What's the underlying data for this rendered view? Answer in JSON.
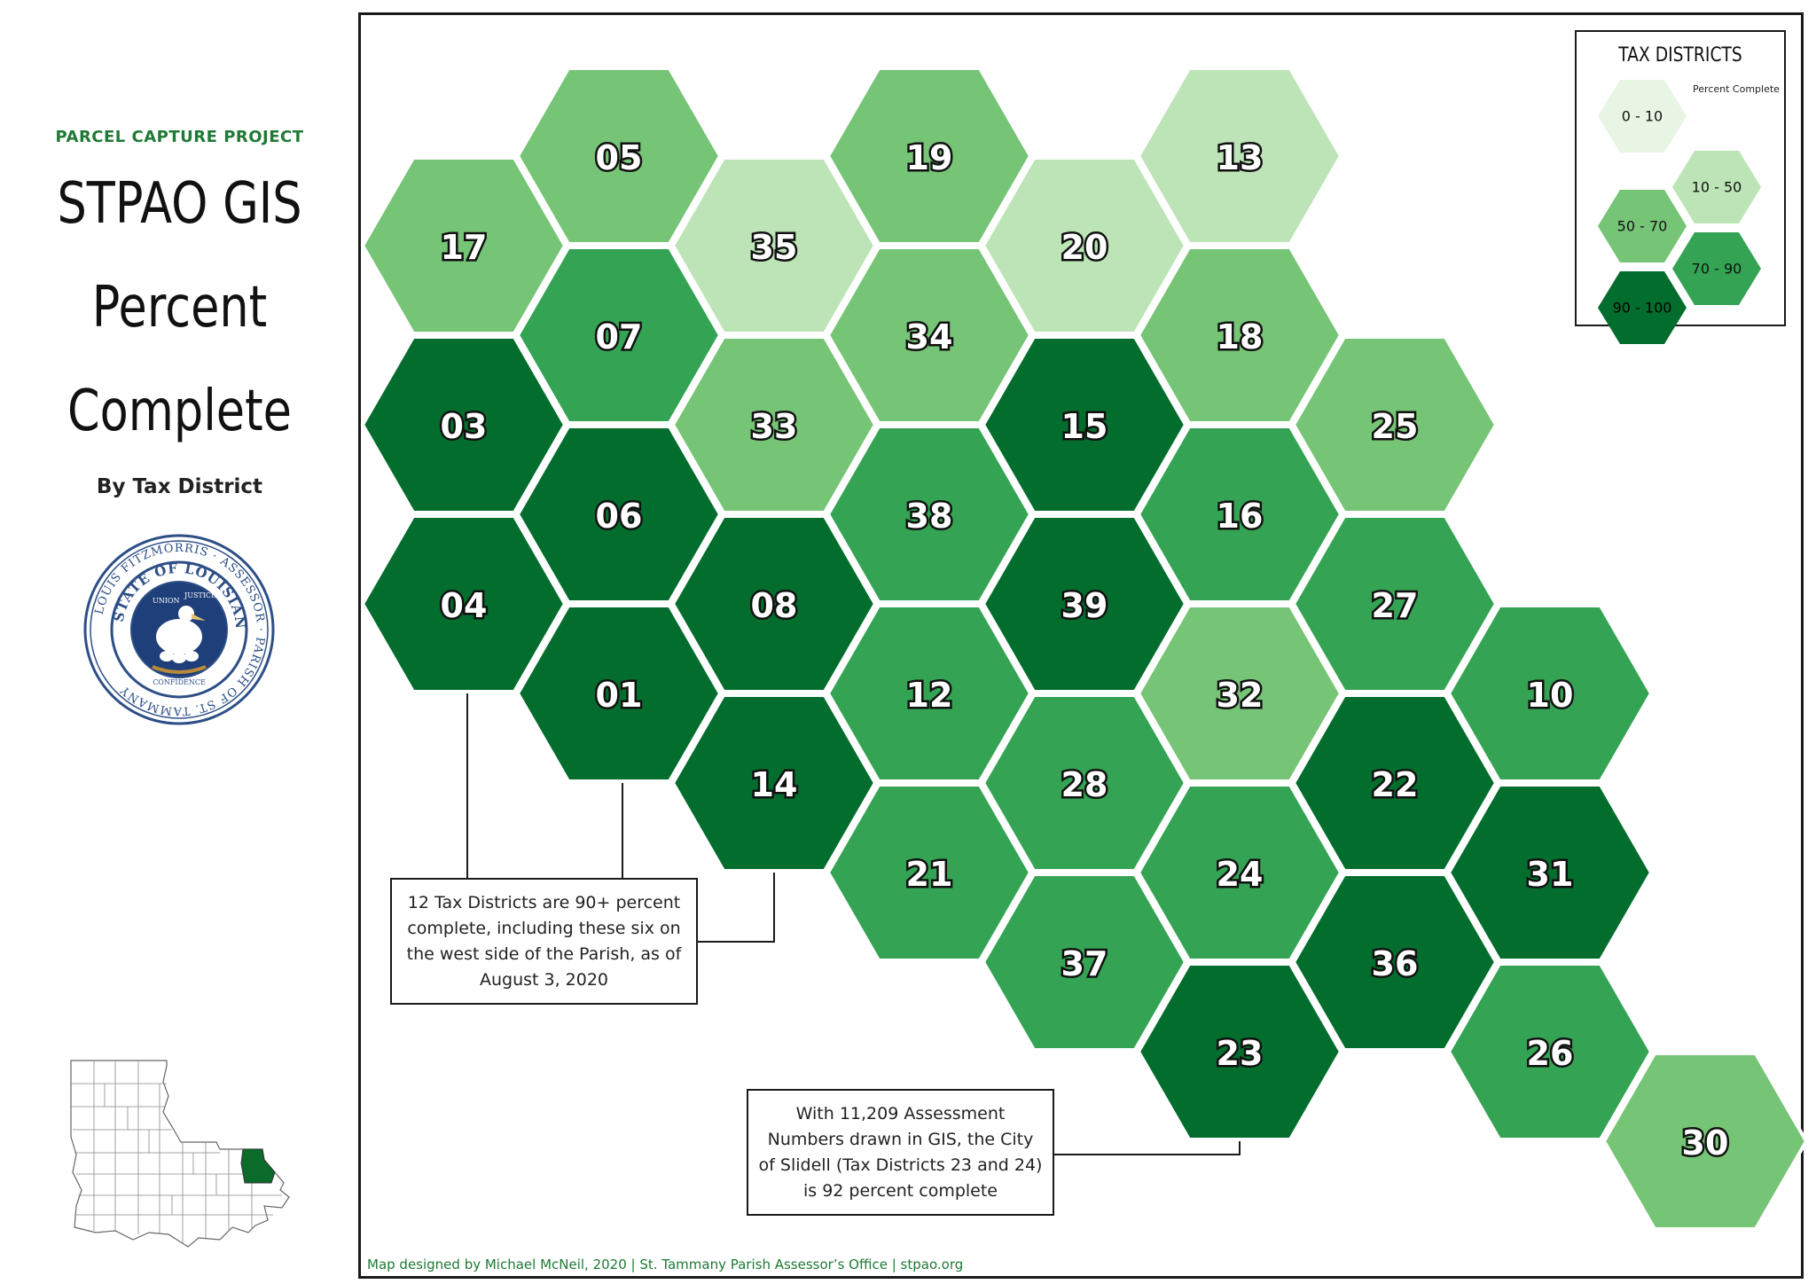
{
  "header": {
    "project": "PARCEL CAPTURE PROJECT",
    "title_lines": [
      "STPAO GIS",
      "Percent",
      "Complete"
    ],
    "subtitle": "By Tax District"
  },
  "seal": {
    "outer_text": "LOUIS FITZMORRIS · ASSESSOR · PARISH OF ST. TAMMANY",
    "inner_text": "STATE OF LOUISIANA",
    "motto": [
      "UNION",
      "JUSTICE",
      "CONFIDENCE"
    ]
  },
  "legend": {
    "title": "TAX DISTRICTS",
    "subtitle": "Percent Complete",
    "classes": [
      {
        "label": "0 - 10",
        "color": "#e8f5e4"
      },
      {
        "label": "10 - 50",
        "color": "#bde4b6"
      },
      {
        "label": "50 - 70",
        "color": "#76c476"
      },
      {
        "label": "70 - 90",
        "color": "#34a354"
      },
      {
        "label": "90 - 100",
        "color": "#036d2d"
      }
    ]
  },
  "districts": [
    {
      "id": "05",
      "class": "50 - 70"
    },
    {
      "id": "19",
      "class": "50 - 70"
    },
    {
      "id": "13",
      "class": "10 - 50"
    },
    {
      "id": "17",
      "class": "50 - 70"
    },
    {
      "id": "35",
      "class": "10 - 50"
    },
    {
      "id": "20",
      "class": "10 - 50"
    },
    {
      "id": "07",
      "class": "70 - 90"
    },
    {
      "id": "34",
      "class": "50 - 70"
    },
    {
      "id": "18",
      "class": "50 - 70"
    },
    {
      "id": "03",
      "class": "90 - 100"
    },
    {
      "id": "33",
      "class": "50 - 70"
    },
    {
      "id": "15",
      "class": "90 - 100"
    },
    {
      "id": "25",
      "class": "50 - 70"
    },
    {
      "id": "06",
      "class": "90 - 100"
    },
    {
      "id": "38",
      "class": "70 - 90"
    },
    {
      "id": "16",
      "class": "70 - 90"
    },
    {
      "id": "04",
      "class": "90 - 100"
    },
    {
      "id": "08",
      "class": "90 - 100"
    },
    {
      "id": "39",
      "class": "90 - 100"
    },
    {
      "id": "27",
      "class": "70 - 90"
    },
    {
      "id": "01",
      "class": "90 - 100"
    },
    {
      "id": "12",
      "class": "70 - 90"
    },
    {
      "id": "32",
      "class": "50 - 70"
    },
    {
      "id": "10",
      "class": "70 - 90"
    },
    {
      "id": "14",
      "class": "90 - 100"
    },
    {
      "id": "28",
      "class": "70 - 90"
    },
    {
      "id": "22",
      "class": "90 - 100"
    },
    {
      "id": "21",
      "class": "70 - 90"
    },
    {
      "id": "24",
      "class": "70 - 90"
    },
    {
      "id": "31",
      "class": "90 - 100"
    },
    {
      "id": "37",
      "class": "70 - 90"
    },
    {
      "id": "36",
      "class": "90 - 100"
    },
    {
      "id": "23",
      "class": "90 - 100"
    },
    {
      "id": "26",
      "class": "70 - 90"
    },
    {
      "id": "30",
      "class": "50 - 70"
    }
  ],
  "callouts": [
    {
      "text": "12 Tax Districts are 90+ percent complete, including these six on the west side of the Parish, as of August 3, 2020",
      "districts": [
        "03",
        "04",
        "06",
        "01",
        "08",
        "14"
      ]
    },
    {
      "text": "With 11,209 Assessment Numbers drawn in GIS, the City of Slidell (Tax Districts 23 and 24) is 92 percent complete",
      "districts": [
        "24",
        "23"
      ]
    }
  ],
  "credit": "Map designed by Michael McNeil, 2020 | St. Tammany Parish Assessor’s Office | stpao.org",
  "highlight_color": "#0a6b2b"
}
